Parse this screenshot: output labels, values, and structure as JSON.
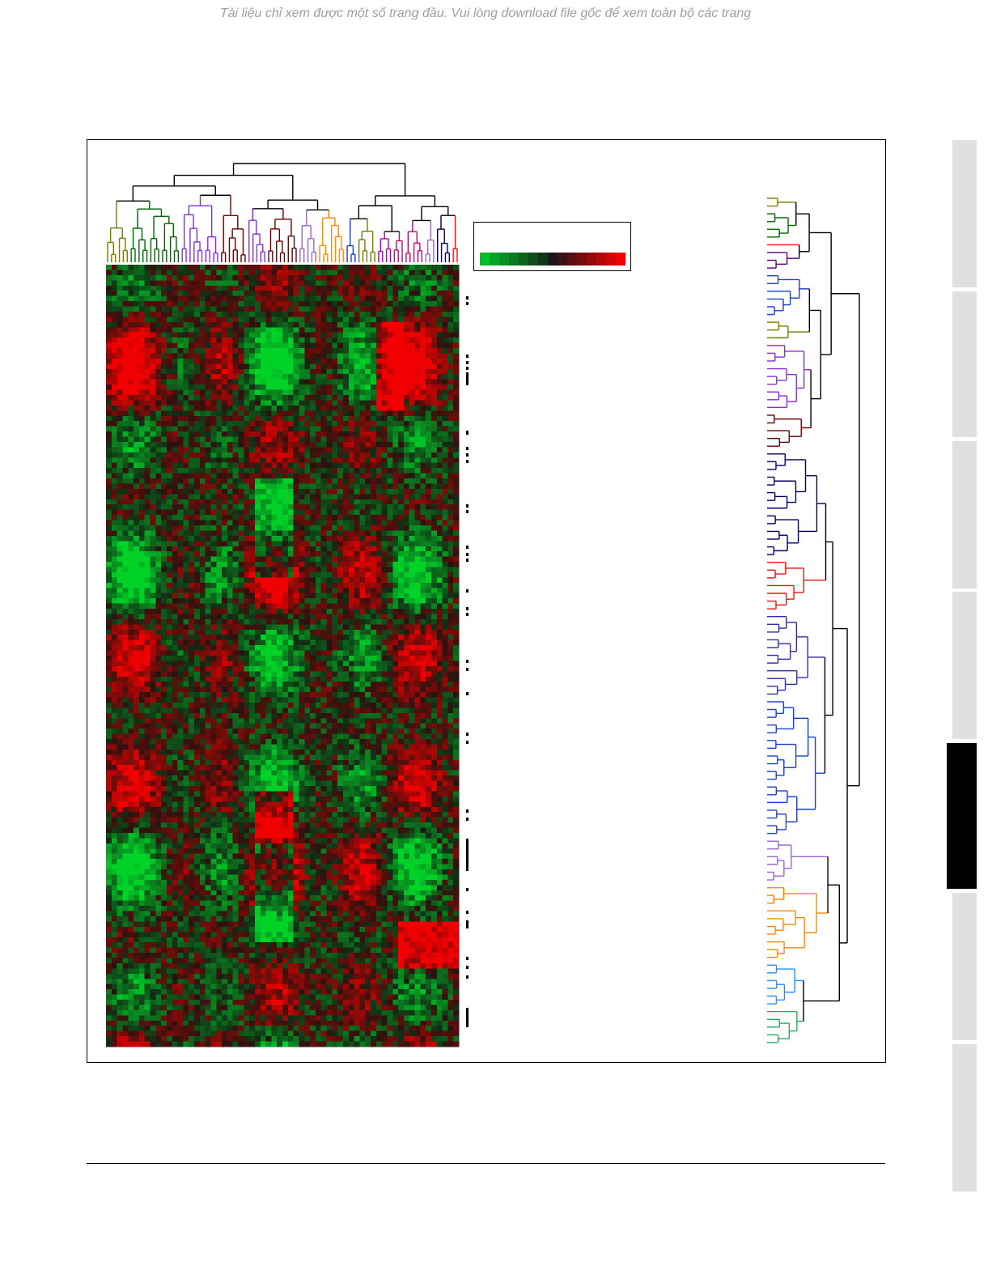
{
  "header": {
    "notice": "Tài liệu chỉ xem được một số trang đầu. Vui lòng download file gốc để xem toàn bộ các trang"
  }
}
